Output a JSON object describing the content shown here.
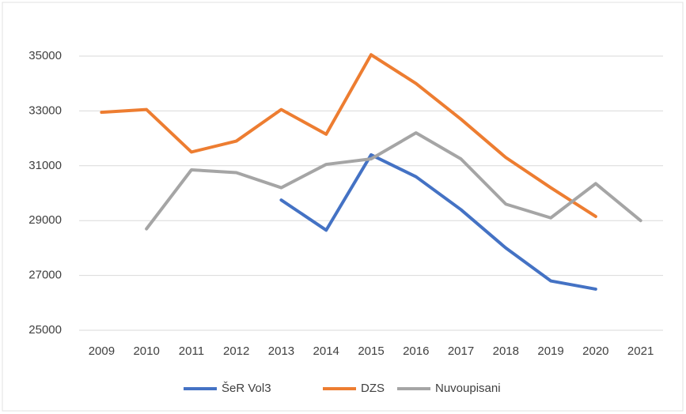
{
  "chart_data": {
    "type": "line",
    "categories": [
      "2009",
      "2010",
      "2011",
      "2012",
      "2013",
      "2014",
      "2015",
      "2016",
      "2017",
      "2018",
      "2019",
      "2020",
      "2021"
    ],
    "series": [
      {
        "name": "ŠeR Vol3",
        "color": "#4472c4",
        "values": [
          null,
          null,
          null,
          null,
          29750,
          28650,
          31400,
          30600,
          29400,
          28000,
          26800,
          26500,
          null
        ]
      },
      {
        "name": "DZS",
        "color": "#ed7d31",
        "values": [
          32950,
          33050,
          31500,
          31900,
          33050,
          32150,
          35050,
          34000,
          32700,
          31300,
          30200,
          29150,
          null
        ]
      },
      {
        "name": "Nuvoupisani",
        "color": "#a5a5a5",
        "values": [
          null,
          28700,
          30850,
          30750,
          30200,
          31050,
          31250,
          32200,
          31250,
          29600,
          29100,
          30350,
          29000
        ]
      }
    ],
    "ylim": [
      25000,
      35000
    ],
    "yticks": [
      25000,
      27000,
      29000,
      31000,
      33000,
      35000
    ],
    "grid": true,
    "legend": "bottom"
  }
}
